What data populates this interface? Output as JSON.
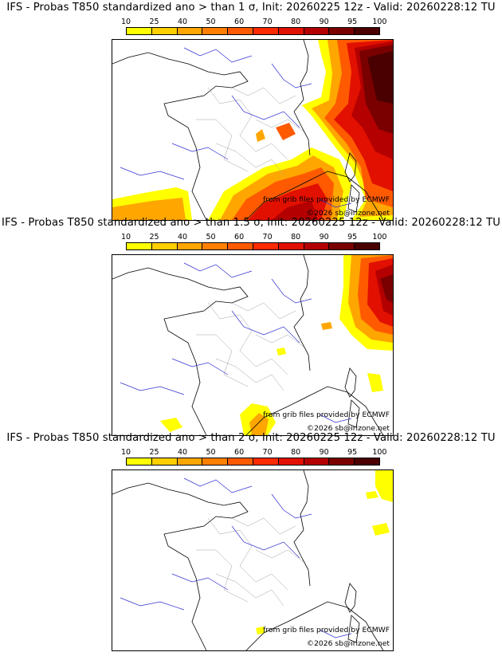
{
  "colors": {
    "levels": [
      "#ffff00",
      "#ffcf00",
      "#ffa600",
      "#ff8000",
      "#ff5a00",
      "#ff2a00",
      "#e21000",
      "#b40000",
      "#7a0000",
      "#4a0000"
    ],
    "coast": "#000000",
    "rivers": "#3030d0",
    "borders": "#a0a0a0"
  },
  "colorbar": {
    "ticks": [
      "10",
      "25",
      "40",
      "50",
      "60",
      "70",
      "80",
      "90",
      "95",
      "100"
    ]
  },
  "credits": {
    "source": "from grib files provided by ECMWF",
    "copyright": "©2026 sb@irizone.net"
  },
  "panels": [
    {
      "title": "IFS - Probas T850  standardized ano > than 1 σ, Init: 20260225 12z - Valid: 20260228:12 TU",
      "sigma": "1"
    },
    {
      "title": "IFS - Probas T850  standardized ano > than 1.5 σ, Init: 20260225 12z - Valid: 20260228:12 TU",
      "sigma": "1.5"
    },
    {
      "title": "IFS - Probas T850  standardized ano > than 2 σ, Init: 20260225 12z - Valid: 20260228:12 TU",
      "sigma": "2"
    }
  ]
}
